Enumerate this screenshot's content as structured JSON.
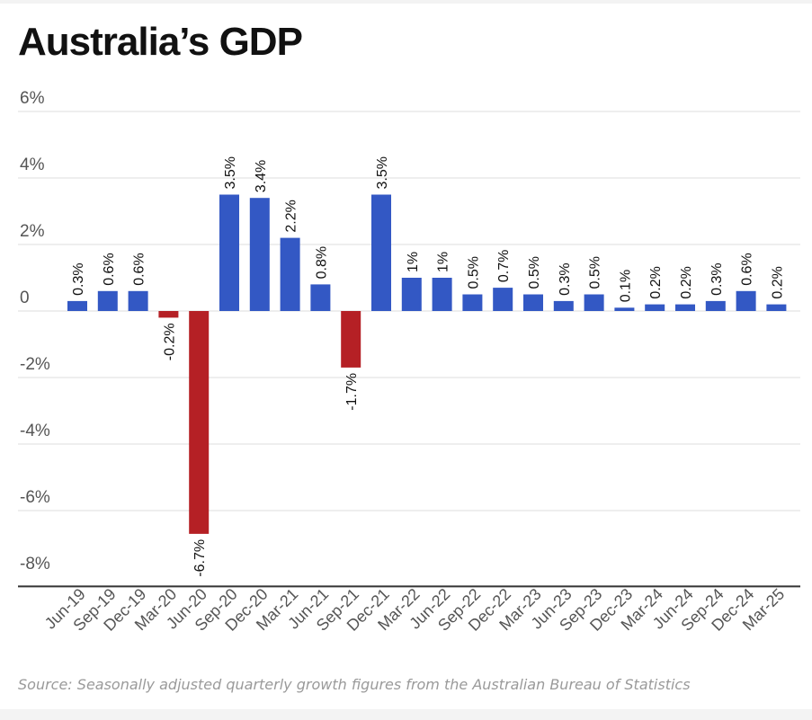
{
  "chart_data": {
    "type": "bar",
    "title": "Australia’s GDP",
    "source": "Source: Seasonally adjusted quarterly growth figures from the Australian Bureau of Statistics",
    "categories": [
      "Jun-19",
      "Sep-19",
      "Dec-19",
      "Mar-20",
      "Jun-20",
      "Sep-20",
      "Dec-20",
      "Mar-21",
      "Jun-21",
      "Sep-21",
      "Dec-21",
      "Mar-22",
      "Jun-22",
      "Sep-22",
      "Dec-22",
      "Mar-23",
      "Jun-23",
      "Sep-23",
      "Dec-23",
      "Mar-24",
      "Jun-24",
      "Sep-24",
      "Dec-24",
      "Mar-25"
    ],
    "values": [
      0.3,
      0.6,
      0.6,
      -0.2,
      -6.7,
      3.5,
      3.4,
      2.2,
      0.8,
      -1.7,
      3.5,
      1,
      1,
      0.5,
      0.7,
      0.5,
      0.3,
      0.5,
      0.1,
      0.2,
      0.2,
      0.3,
      0.6,
      0.2
    ],
    "data_labels": [
      "0.3%",
      "0.6%",
      "0.6%",
      "-0.2%",
      "-6.7%",
      "3.5%",
      "3.4%",
      "2.2%",
      "0.8%",
      "-1.7%",
      "3.5%",
      "1%",
      "1%",
      "0.5%",
      "0.7%",
      "0.5%",
      "0.3%",
      "0.5%",
      "0.1%",
      "0.2%",
      "0.2%",
      "0.3%",
      "0.6%",
      "0.2%"
    ],
    "yticks": [
      6,
      4,
      2,
      0,
      -2,
      -4,
      -6,
      -8
    ],
    "ytick_labels": [
      "6%",
      "4%",
      "2%",
      "0",
      "-2%",
      "-4%",
      "-6%",
      "-8%"
    ],
    "ylim": [
      -8.2,
      6
    ],
    "grid": true,
    "colors": {
      "positive": "#3358c4",
      "negative": "#b52025",
      "grid": "#dcdcdc",
      "axis": "#333333",
      "text": "#555555"
    }
  }
}
